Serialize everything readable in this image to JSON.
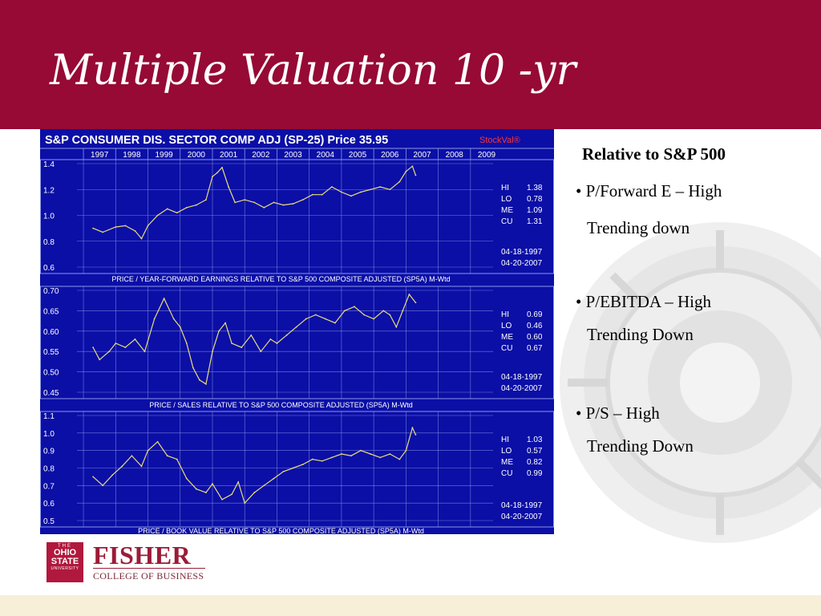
{
  "slide": {
    "title": "Multiple Valuation 10 -yr",
    "colors": {
      "title_bar": "#960a35",
      "chart_bg": "#0b0fa6",
      "series": "#e8dc7a"
    }
  },
  "bullets": {
    "heading": "Relative to S&P 500",
    "items": [
      {
        "bullet": "• P/Forward E – High",
        "sub": "Trending down"
      },
      {
        "bullet": "• P/EBITDA – High",
        "sub": "Trending Down"
      },
      {
        "bullet": "• P/S – High",
        "sub": "Trending Down"
      }
    ]
  },
  "logo": {
    "osu_the": "THE",
    "osu_ohio": "OHIO",
    "osu_state": "STATE",
    "osu_university": "UNIVERSITY",
    "fisher": "FISHER",
    "college": "COLLEGE OF BUSINESS"
  },
  "chart_data": {
    "header": "S&P CONSUMER DIS. SECTOR COMP ADJ (SP-25)  Price 35.95",
    "brand": "StockVal®",
    "years": [
      "1997",
      "1998",
      "1999",
      "2000",
      "2001",
      "2002",
      "2003",
      "2004",
      "2005",
      "2006",
      "2007",
      "2008",
      "2009"
    ],
    "panels": [
      {
        "type": "line",
        "caption": "PRICE / YEAR-FORWARD EARNINGS RELATIVE TO S&P 500 COMPOSITE ADJUSTED (SP5A) M-Wtd",
        "yticks": [
          "1.4",
          "1.2",
          "1.0",
          "0.8",
          "0.6"
        ],
        "ylim": [
          0.6,
          1.4
        ],
        "stats": [
          [
            "HI",
            "1.38"
          ],
          [
            "LO",
            "0.78"
          ],
          [
            "ME",
            "1.09"
          ],
          [
            "CU",
            "1.31"
          ]
        ],
        "dates": [
          "04-18-1997",
          "04-20-2007"
        ],
        "x": [
          1997.3,
          1997.6,
          1998.0,
          1998.3,
          1998.6,
          1998.8,
          1999.0,
          1999.3,
          1999.6,
          1999.9,
          2000.2,
          2000.5,
          2000.8,
          2001.0,
          2001.15,
          2001.3,
          2001.5,
          2001.7,
          2002.0,
          2002.3,
          2002.6,
          2002.9,
          2003.2,
          2003.5,
          2003.8,
          2004.1,
          2004.4,
          2004.7,
          2005.0,
          2005.3,
          2005.6,
          2005.9,
          2006.2,
          2006.5,
          2006.8,
          2007.0,
          2007.2,
          2007.3
        ],
        "y": [
          0.9,
          0.87,
          0.91,
          0.92,
          0.88,
          0.82,
          0.92,
          1.0,
          1.05,
          1.02,
          1.06,
          1.08,
          1.12,
          1.3,
          1.33,
          1.37,
          1.22,
          1.1,
          1.12,
          1.1,
          1.06,
          1.1,
          1.08,
          1.09,
          1.12,
          1.16,
          1.16,
          1.22,
          1.18,
          1.15,
          1.18,
          1.2,
          1.22,
          1.2,
          1.26,
          1.34,
          1.38,
          1.31
        ]
      },
      {
        "type": "line",
        "caption": "PRICE / SALES RELATIVE TO S&P 500 COMPOSITE ADJUSTED (SP5A) M-Wtd",
        "yticks": [
          "0.70",
          "0.65",
          "0.60",
          "0.55",
          "0.50",
          "0.45"
        ],
        "ylim": [
          0.45,
          0.7
        ],
        "stats": [
          [
            "HI",
            "0.69"
          ],
          [
            "LO",
            "0.46"
          ],
          [
            "ME",
            "0.60"
          ],
          [
            "CU",
            "0.67"
          ]
        ],
        "dates": [
          "04-18-1997",
          "04-20-2007"
        ],
        "x": [
          1997.3,
          1997.5,
          1997.8,
          1998.0,
          1998.3,
          1998.6,
          1998.9,
          1999.2,
          1999.5,
          1999.8,
          2000.0,
          2000.2,
          2000.4,
          2000.6,
          2000.8,
          2001.0,
          2001.2,
          2001.4,
          2001.6,
          2001.9,
          2002.2,
          2002.5,
          2002.8,
          2003.0,
          2003.3,
          2003.6,
          2003.9,
          2004.2,
          2004.5,
          2004.8,
          2005.1,
          2005.4,
          2005.7,
          2006.0,
          2006.3,
          2006.5,
          2006.7,
          2006.9,
          2007.1,
          2007.3
        ],
        "y": [
          0.56,
          0.53,
          0.55,
          0.57,
          0.56,
          0.58,
          0.55,
          0.63,
          0.68,
          0.63,
          0.61,
          0.57,
          0.51,
          0.48,
          0.47,
          0.55,
          0.6,
          0.62,
          0.57,
          0.56,
          0.59,
          0.55,
          0.58,
          0.57,
          0.59,
          0.61,
          0.63,
          0.64,
          0.63,
          0.62,
          0.65,
          0.66,
          0.64,
          0.63,
          0.65,
          0.64,
          0.61,
          0.65,
          0.69,
          0.67
        ]
      },
      {
        "type": "line",
        "caption": "PRICE / BOOK VALUE RELATIVE TO S&P 500 COMPOSITE ADJUSTED (SP5A) M-Wtd",
        "yticks": [
          "1.1",
          "1.0",
          "0.9",
          "0.8",
          "0.7",
          "0.6",
          "0.5"
        ],
        "ylim": [
          0.5,
          1.1
        ],
        "stats": [
          [
            "HI",
            "1.03"
          ],
          [
            "LO",
            "0.57"
          ],
          [
            "ME",
            "0.82"
          ],
          [
            "CU",
            "0.99"
          ]
        ],
        "dates": [
          "04-18-1997",
          "04-20-2007"
        ],
        "x": [
          1997.3,
          1997.6,
          1997.9,
          1998.2,
          1998.5,
          1998.8,
          1999.0,
          1999.3,
          1999.6,
          1999.9,
          2000.2,
          2000.5,
          2000.8,
          2001.0,
          2001.3,
          2001.6,
          2001.8,
          2002.0,
          2002.3,
          2002.6,
          2002.9,
          2003.2,
          2003.5,
          2003.8,
          2004.1,
          2004.4,
          2004.7,
          2005.0,
          2005.3,
          2005.6,
          2005.9,
          2006.2,
          2006.5,
          2006.8,
          2007.0,
          2007.2,
          2007.3
        ],
        "y": [
          0.75,
          0.7,
          0.76,
          0.81,
          0.87,
          0.81,
          0.9,
          0.95,
          0.87,
          0.85,
          0.74,
          0.68,
          0.66,
          0.71,
          0.62,
          0.65,
          0.72,
          0.6,
          0.66,
          0.7,
          0.74,
          0.78,
          0.8,
          0.82,
          0.85,
          0.84,
          0.86,
          0.88,
          0.87,
          0.9,
          0.88,
          0.86,
          0.88,
          0.85,
          0.9,
          1.03,
          0.99
        ]
      }
    ]
  }
}
